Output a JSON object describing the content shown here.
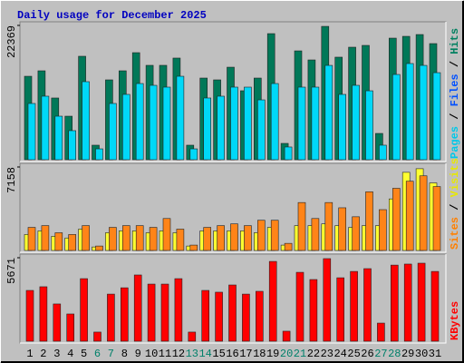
{
  "chart_data": [
    {
      "type": "bar",
      "title": "Daily usage for December 2025",
      "ylim": [
        0,
        22369
      ],
      "yticks": [
        22369
      ],
      "legend": [
        {
          "text": "Pages",
          "color": "#00c8e8"
        },
        {
          "text": "Files",
          "color": "#0050ff"
        },
        {
          "text": "Hits",
          "color": "#008060"
        }
      ],
      "legend_separator": " / ",
      "series": [
        {
          "color": "#007858",
          "values": [
            13900,
            14810,
            10280,
            7250,
            17230,
            2420,
            13300,
            14810,
            17830,
            15720,
            15720,
            16930,
            2420,
            13600,
            13300,
            15410,
            11490,
            13600,
            21000,
            2720,
            18130,
            16620,
            22210,
            17080,
            18740,
            19040,
            4380,
            20250,
            20550,
            20850,
            19340
          ]
        },
        {
          "color": "#00d8f8",
          "values": [
            9370,
            10580,
            7250,
            4840,
            13000,
            1810,
            9370,
            10880,
            12690,
            12390,
            12090,
            13900,
            1810,
            10280,
            10580,
            12090,
            12090,
            9970,
            12690,
            2120,
            12090,
            12090,
            15710,
            10880,
            12390,
            11480,
            2420,
            14200,
            16020,
            15710,
            14500
          ]
        }
      ]
    },
    {
      "type": "bar",
      "ylim": [
        0,
        7158
      ],
      "yticks": [
        7158
      ],
      "legend": [
        {
          "text": "Sites",
          "color": "#ff8000"
        },
        {
          "text": "Visits",
          "color": "#e8e800"
        }
      ],
      "legend_separator": " / ",
      "series": [
        {
          "color": "#ffff30",
          "values": [
            1370,
            1680,
            1220,
            1070,
            1830,
            300,
            1520,
            1680,
            1680,
            1520,
            1680,
            1520,
            380,
            1680,
            1680,
            1680,
            1680,
            1520,
            1980,
            460,
            2130,
            2130,
            2280,
            2130,
            1980,
            2130,
            2130,
            4420,
            6700,
            7010,
            5790
          ]
        },
        {
          "color": "#ff8418",
          "values": [
            1980,
            2130,
            1520,
            1370,
            2130,
            380,
            1980,
            2130,
            2130,
            1980,
            2740,
            1830,
            460,
            1980,
            2130,
            2280,
            2130,
            2590,
            2590,
            610,
            4110,
            2740,
            4110,
            3660,
            2890,
            5030,
            3500,
            5330,
            5940,
            6400,
            5480
          ]
        }
      ]
    },
    {
      "type": "bar",
      "ylim": [
        0,
        5671
      ],
      "yticks": [
        5671
      ],
      "legend": [
        {
          "text": "KBytes",
          "color": "#ff0000"
        }
      ],
      "legend_separator": " / ",
      "series": [
        {
          "color": "#ff0000",
          "values": [
            3450,
            3700,
            2530,
            1850,
            4250,
            620,
            3200,
            3630,
            4500,
            3880,
            3880,
            4250,
            620,
            3450,
            3330,
            3820,
            3200,
            3390,
            5420,
            680,
            4680,
            4190,
            5610,
            4310,
            4740,
            4930,
            1230,
            5170,
            5240,
            5300,
            4740
          ]
        }
      ],
      "categories": [
        "1",
        "2",
        "3",
        "4",
        "5",
        "6",
        "7",
        "8",
        "9",
        "10",
        "11",
        "12",
        "13",
        "14",
        "15",
        "16",
        "17",
        "18",
        "19",
        "20",
        "21",
        "22",
        "23",
        "24",
        "25",
        "26",
        "27",
        "28",
        "29",
        "30",
        "31"
      ],
      "category_colors": [
        "#000000",
        "#000000",
        "#000000",
        "#000000",
        "#000000",
        "#00806a",
        "#00806a",
        "#000000",
        "#000000",
        "#000000",
        "#000000",
        "#000000",
        "#00806a",
        "#00806a",
        "#000000",
        "#000000",
        "#000000",
        "#000000",
        "#000000",
        "#00806a",
        "#00806a",
        "#000000",
        "#000000",
        "#000000",
        "#000000",
        "#000000",
        "#00806a",
        "#00806a",
        "#000000",
        "#000000",
        "#000000"
      ]
    }
  ]
}
